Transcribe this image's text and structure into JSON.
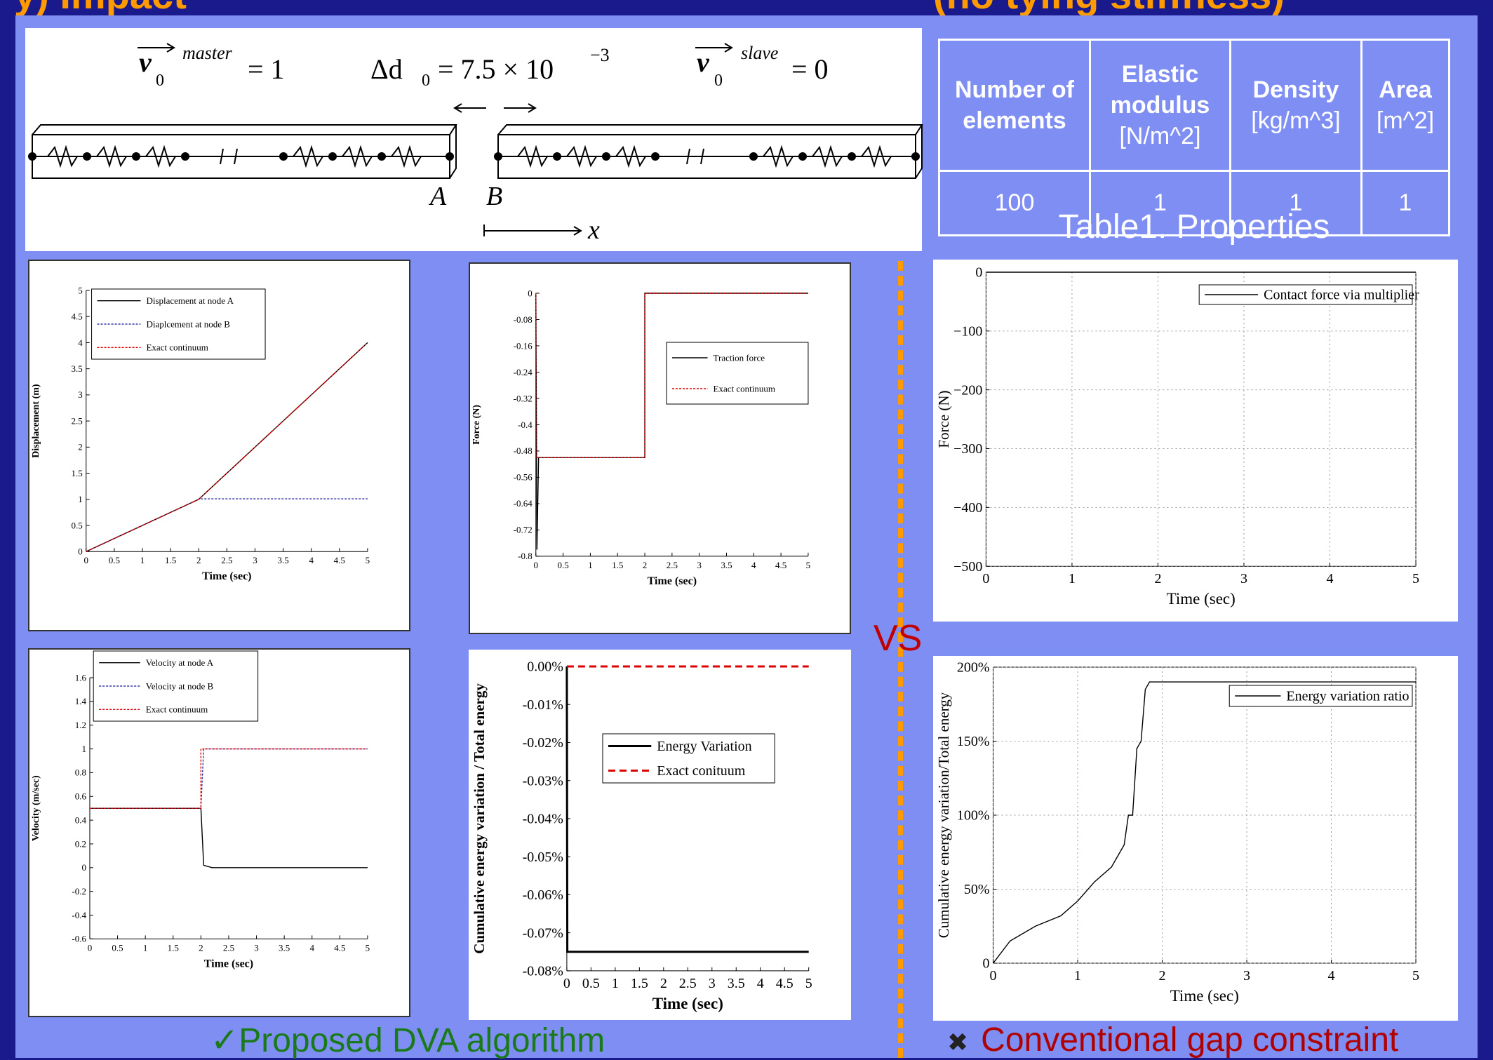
{
  "banner": {
    "left": "y) Impact",
    "right": "(no tying stiffness)"
  },
  "schematic": {
    "v_master_label": "v",
    "v_master_sup": "master",
    "v_master_sub": "0",
    "v_master_eq": "= 1",
    "delta_label": "Δd",
    "delta_sub": "0",
    "delta_eq": "= 7.5 × 10",
    "delta_exp": "−3",
    "v_slave_label": "v",
    "v_slave_sup": "slave",
    "v_slave_sub": "0",
    "v_slave_eq": "= 0",
    "node_a": "A",
    "node_b": "B",
    "axis": "x"
  },
  "table": {
    "headers": [
      {
        "title": "Number of elements",
        "unit": ""
      },
      {
        "title": "Elastic modulus",
        "unit": "[N/m^2]"
      },
      {
        "title": "Density",
        "unit": "[kg/m^3]"
      },
      {
        "title": "Area",
        "unit": "[m^2]"
      }
    ],
    "row": [
      "100",
      "1",
      "1",
      "1"
    ],
    "caption": "Table1. Properties"
  },
  "vs_label": "VS",
  "left_caption": {
    "icon": "✓",
    "text": "Proposed DVA algorithm"
  },
  "right_caption": {
    "icon": "✖",
    "text": "Conventional gap constraint"
  },
  "colors": {
    "accent_orange": "#ff9a00",
    "panel": "#7f8ef2",
    "bg": "#1a1a8c",
    "good": "#1a7a1a",
    "bad": "#b00000"
  },
  "chart_data": [
    {
      "id": "disp",
      "type": "line",
      "xlabel": "Time (sec)",
      "ylabel": "Displacement (m)",
      "xlim": [
        0,
        5
      ],
      "ylim": [
        0,
        5
      ],
      "xticks": [
        "0",
        "0.5",
        "1",
        "1.5",
        "2",
        "2.5",
        "3",
        "3.5",
        "4",
        "4.5",
        "5"
      ],
      "yticks": [
        "0",
        "0.5",
        "1",
        "1.5",
        "2",
        "2.5",
        "3",
        "3.5",
        "4",
        "4.5",
        "5"
      ],
      "legend": "top-left",
      "series": [
        {
          "name": "Displacement at node A",
          "color": "#000000",
          "dash": "",
          "x": [
            0,
            2,
            5
          ],
          "y": [
            0,
            1,
            4
          ]
        },
        {
          "name": "Diaplcement at node B",
          "color": "#3333aa",
          "dash": "3,2",
          "x": [
            0,
            2,
            2.05,
            5
          ],
          "y": [
            0,
            1,
            1.01,
            1.01
          ]
        },
        {
          "name": "Exact continuum",
          "color": "#dd0000",
          "dash": "3,2",
          "x": [
            0,
            2,
            5
          ],
          "y": [
            0,
            1,
            4
          ]
        }
      ]
    },
    {
      "id": "force",
      "type": "line",
      "xlabel": "Time (sec)",
      "ylabel": "Force (N)",
      "xlim": [
        0,
        5
      ],
      "ylim": [
        -0.8,
        0
      ],
      "xticks": [
        "0",
        "0.5",
        "1",
        "1.5",
        "2",
        "2.5",
        "3",
        "3.5",
        "4",
        "4.5",
        "5"
      ],
      "yticks": [
        "0",
        "-0.08",
        "-0.16",
        "-0.24",
        "-0.32",
        "-0.4",
        "-0.48",
        "-0.56",
        "-0.64",
        "-0.72",
        "-0.8"
      ],
      "legend": "center-right",
      "series": [
        {
          "name": "Traction force",
          "color": "#000000",
          "dash": "",
          "x": [
            0,
            0.02,
            0.05,
            1.4,
            2.0,
            2.0,
            5
          ],
          "y": [
            0,
            -0.78,
            -0.5,
            -0.5,
            -0.5,
            0,
            0
          ]
        },
        {
          "name": "Exact continuum",
          "color": "#dd0000",
          "dash": "3,2",
          "x": [
            0,
            0,
            2,
            2,
            5
          ],
          "y": [
            0,
            -0.5,
            -0.5,
            0,
            0
          ]
        }
      ]
    },
    {
      "id": "vel",
      "type": "line",
      "xlabel": "Time (sec)",
      "ylabel": "Velocity (m/sec)",
      "xlim": [
        0,
        5
      ],
      "ylim": [
        -0.6,
        1.6
      ],
      "xticks": [
        "0",
        "0.5",
        "1",
        "1.5",
        "2",
        "2.5",
        "3",
        "3.5",
        "4",
        "4.5",
        "5"
      ],
      "yticks": [
        "1.6",
        "1.4",
        "1.2",
        "1",
        "0.8",
        "0.6",
        "0.4",
        "0.2",
        "0",
        "-0.2",
        "-0.4",
        "-0.6"
      ],
      "legend": "top-left",
      "series": [
        {
          "name": "Velocity at node A",
          "color": "#000000",
          "dash": "",
          "x": [
            0,
            2,
            2.05,
            2.2,
            5
          ],
          "y": [
            0.5,
            0.5,
            0.02,
            0,
            0
          ]
        },
        {
          "name": "Velocity at node B",
          "color": "#3333aa",
          "dash": "3,2",
          "x": [
            0,
            2,
            2.05,
            5
          ],
          "y": [
            0.5,
            0.5,
            1.0,
            1.0
          ]
        },
        {
          "name": "Exact continuum",
          "color": "#dd0000",
          "dash": "3,2",
          "x": [
            0,
            2,
            2,
            5
          ],
          "y": [
            0.5,
            0.5,
            1,
            1
          ]
        }
      ]
    },
    {
      "id": "energy",
      "type": "line",
      "xlabel": "Time (sec)",
      "ylabel": "Cumulative energy variation / Total energy",
      "xlim": [
        0,
        5
      ],
      "ylim": [
        -0.08,
        0
      ],
      "xticks": [
        "0",
        "0.5",
        "1",
        "1.5",
        "2",
        "2.5",
        "3",
        "3.5",
        "4",
        "4.5",
        "5"
      ],
      "yticks": [
        "0.00%",
        "-0.01%",
        "-0.02%",
        "-0.03%",
        "-0.04%",
        "-0.05%",
        "-0.06%",
        "-0.07%",
        "-0.08%"
      ],
      "legend": "center-right",
      "series": [
        {
          "name": "Energy Variation",
          "color": "#000000",
          "dash": "",
          "x": [
            0,
            0.01,
            5
          ],
          "y": [
            0,
            -0.075,
            -0.075
          ]
        },
        {
          "name": "Exact conituum",
          "color": "#dd0000",
          "dash": "10,6",
          "x": [
            0,
            5
          ],
          "y": [
            0,
            0
          ]
        }
      ]
    },
    {
      "id": "cforce",
      "type": "line",
      "xlabel": "Time (sec)",
      "ylabel": "Force (N)",
      "xlim": [
        0,
        5
      ],
      "ylim": [
        -500,
        0
      ],
      "xticks": [
        "0",
        "1",
        "2",
        "3",
        "4",
        "5"
      ],
      "yticks": [
        "0",
        "−100",
        "−200",
        "−300",
        "−400",
        "−500"
      ],
      "legend": "top-right",
      "grid": true,
      "series": [
        {
          "name": "Contact force via multiplier",
          "color": "#000000",
          "dash": "",
          "x": [
            0,
            2,
            5
          ],
          "y": [
            0,
            0,
            0
          ]
        }
      ]
    },
    {
      "id": "eratio",
      "type": "line",
      "xlabel": "Time (sec)",
      "ylabel": "Cumulative energy variation/Total energy",
      "xlim": [
        0,
        5
      ],
      "ylim": [
        0,
        200
      ],
      "xticks": [
        "0",
        "1",
        "2",
        "3",
        "4",
        "5"
      ],
      "yticks": [
        "200%",
        "150%",
        "100%",
        "50%",
        "0"
      ],
      "legend": "top-right",
      "grid": true,
      "series": [
        {
          "name": "Energy variation ratio",
          "color": "#000000",
          "dash": "",
          "x": [
            0,
            0.2,
            0.5,
            0.8,
            1.0,
            1.2,
            1.4,
            1.55,
            1.6,
            1.65,
            1.7,
            1.75,
            1.8,
            1.85,
            1.9,
            5
          ],
          "y": [
            0,
            15,
            25,
            32,
            42,
            55,
            65,
            80,
            100,
            100,
            145,
            150,
            185,
            190,
            190,
            190
          ]
        }
      ]
    }
  ]
}
